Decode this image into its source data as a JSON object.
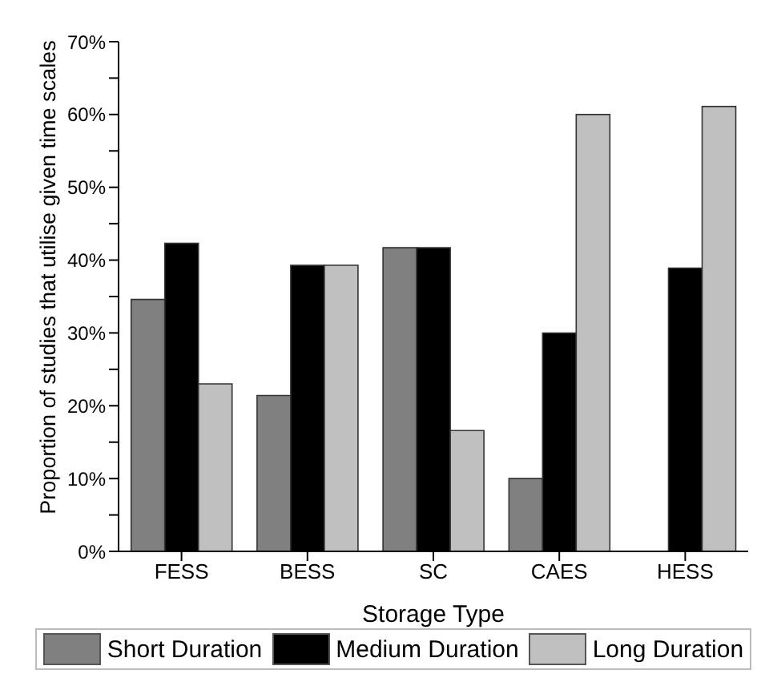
{
  "chart_data": {
    "type": "bar",
    "xlabel": "Storage Type",
    "ylabel": "Proportion of studies that utilise given time scales",
    "categories": [
      "FESS",
      "BESS",
      "SC",
      "CAES",
      "HESS"
    ],
    "series": [
      {
        "name": "Short Duration",
        "color": "#808080",
        "values": [
          34.6,
          21.4,
          41.7,
          10,
          0
        ]
      },
      {
        "name": "Medium Duration",
        "color": "#000000",
        "values": [
          42.3,
          39.3,
          41.7,
          30,
          38.9
        ]
      },
      {
        "name": "Long Duration",
        "color": "#c0c0c0",
        "values": [
          23.0,
          39.3,
          16.6,
          60,
          61.1
        ]
      }
    ],
    "ylim": [
      0,
      70
    ],
    "yticks": [
      {
        "value": 0,
        "label": "0%"
      },
      {
        "value": 5,
        "label": null
      },
      {
        "value": 10,
        "label": "10%"
      },
      {
        "value": 15,
        "label": null
      },
      {
        "value": 20,
        "label": "20%"
      },
      {
        "value": 25,
        "label": null
      },
      {
        "value": 30,
        "label": "30%"
      },
      {
        "value": 35,
        "label": null
      },
      {
        "value": 40,
        "label": "40%"
      },
      {
        "value": 45,
        "label": null
      },
      {
        "value": 50,
        "label": "50%"
      },
      {
        "value": 55,
        "label": null
      },
      {
        "value": 60,
        "label": "60%"
      },
      {
        "value": 65,
        "label": null
      },
      {
        "value": 70,
        "label": "70%"
      }
    ],
    "grid": false,
    "legend": "bottom"
  }
}
